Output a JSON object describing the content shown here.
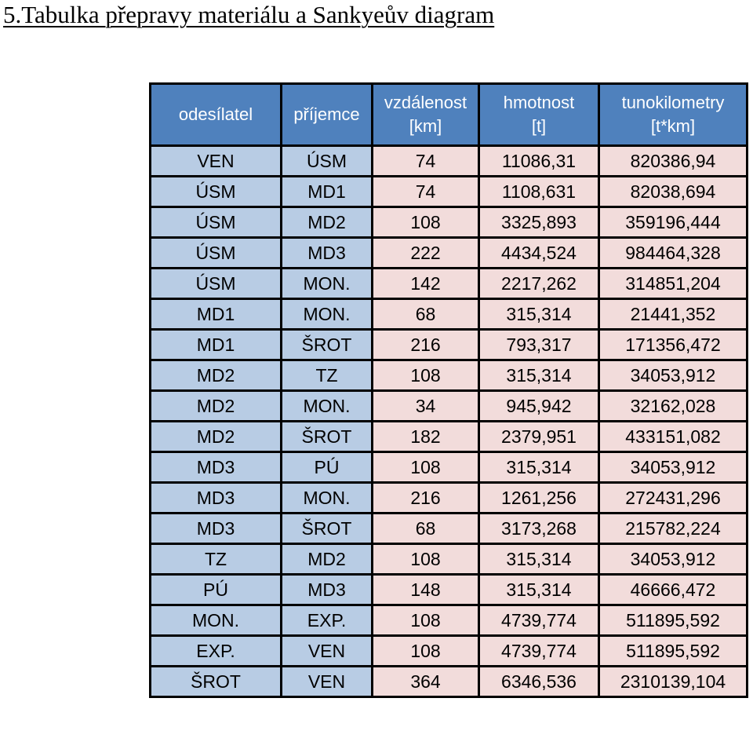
{
  "title": "5.Tabulka přepravy materiálu a Sankyeův diagram",
  "colors": {
    "header_background": "#4f81bd",
    "header_text": "#ffffff",
    "endpoint_cells": "#b8cce4",
    "value_cells": "#f2dcdb",
    "grid": "#000000"
  },
  "table": {
    "headers": [
      {
        "line1": "odesílatel",
        "line2": ""
      },
      {
        "line1": "příjemce",
        "line2": ""
      },
      {
        "line1": "vzdálenost",
        "line2": "[km]"
      },
      {
        "line1": "hmotnost",
        "line2": "[t]"
      },
      {
        "line1": "tunokilometry",
        "line2": "[t*km]"
      }
    ],
    "rows": [
      [
        "VEN",
        "ÚSM",
        "74",
        "11086,31",
        "820386,94"
      ],
      [
        "ÚSM",
        "MD1",
        "74",
        "1108,631",
        "82038,694"
      ],
      [
        "ÚSM",
        "MD2",
        "108",
        "3325,893",
        "359196,444"
      ],
      [
        "ÚSM",
        "MD3",
        "222",
        "4434,524",
        "984464,328"
      ],
      [
        "ÚSM",
        "MON.",
        "142",
        "2217,262",
        "314851,204"
      ],
      [
        "MD1",
        "MON.",
        "68",
        "315,314",
        "21441,352"
      ],
      [
        "MD1",
        "ŠROT",
        "216",
        "793,317",
        "171356,472"
      ],
      [
        "MD2",
        "TZ",
        "108",
        "315,314",
        "34053,912"
      ],
      [
        "MD2",
        "MON.",
        "34",
        "945,942",
        "32162,028"
      ],
      [
        "MD2",
        "ŠROT",
        "182",
        "2379,951",
        "433151,082"
      ],
      [
        "MD3",
        "PÚ",
        "108",
        "315,314",
        "34053,912"
      ],
      [
        "MD3",
        "MON.",
        "216",
        "1261,256",
        "272431,296"
      ],
      [
        "MD3",
        "ŠROT",
        "68",
        "3173,268",
        "215782,224"
      ],
      [
        "TZ",
        "MD2",
        "108",
        "315,314",
        "34053,912"
      ],
      [
        "PÚ",
        "MD3",
        "148",
        "315,314",
        "46666,472"
      ],
      [
        "MON.",
        "EXP.",
        "108",
        "4739,774",
        "511895,592"
      ],
      [
        "EXP.",
        "VEN",
        "108",
        "4739,774",
        "511895,592"
      ],
      [
        "ŠROT",
        "VEN",
        "364",
        "6346,536",
        "2310139,104"
      ]
    ]
  }
}
